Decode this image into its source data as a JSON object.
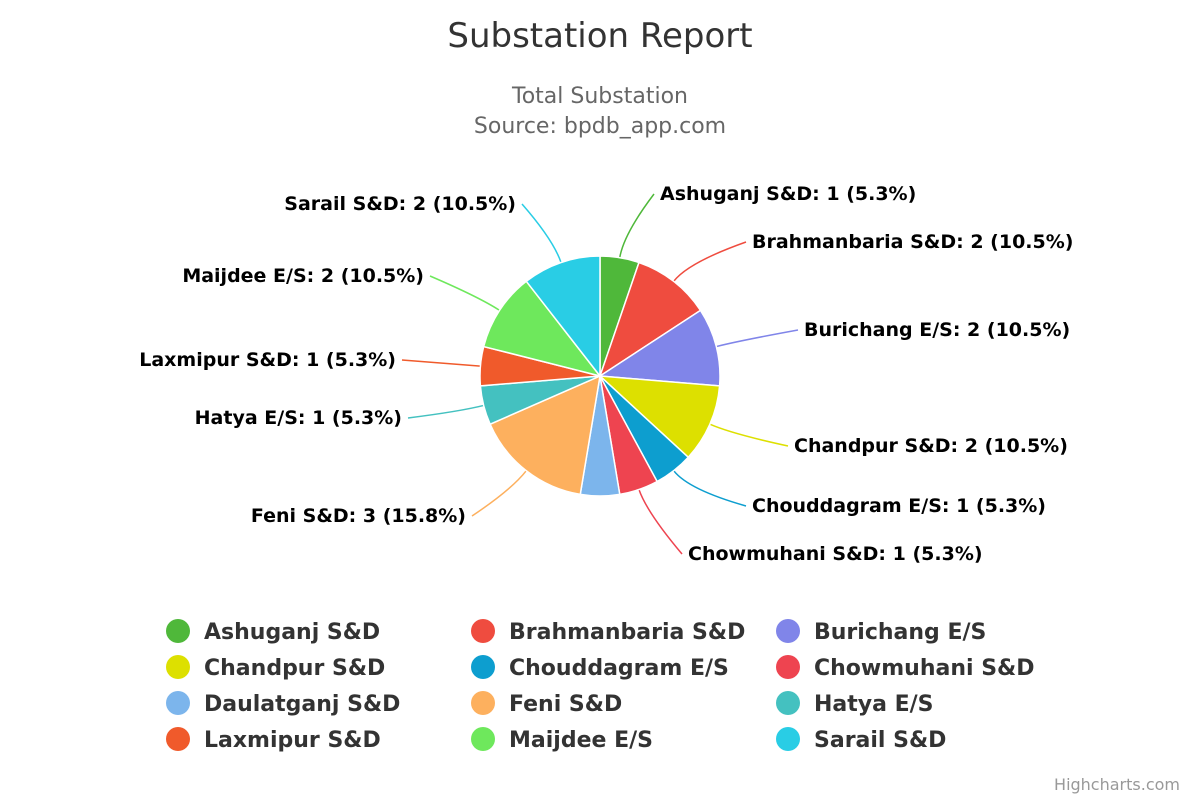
{
  "chart_data": {
    "type": "pie",
    "title": "Substation Report",
    "subtitle_lines": [
      "Total Substation",
      "Source: bpdb_app.com"
    ],
    "legend_placement": "bottom",
    "slices": [
      {
        "name": "Ashuganj S&D",
        "value": 1,
        "percent": "5.3%",
        "color": "#4fb83a"
      },
      {
        "name": "Brahmanbaria S&D",
        "value": 2,
        "percent": "10.5%",
        "color": "#ef4c3f"
      },
      {
        "name": "Burichang E/S",
        "value": 2,
        "percent": "10.5%",
        "color": "#8085e9"
      },
      {
        "name": "Chandpur S&D",
        "value": 2,
        "percent": "10.5%",
        "color": "#dde000"
      },
      {
        "name": "Chouddagram E/S",
        "value": 1,
        "percent": "5.3%",
        "color": "#0d9ecf"
      },
      {
        "name": "Chowmuhani S&D",
        "value": 1,
        "percent": "5.3%",
        "color": "#ee4450"
      },
      {
        "name": "Daulatganj S&D",
        "value": 1,
        "percent": "5.3%",
        "color": "#7cb5ec"
      },
      {
        "name": "Feni S&D",
        "value": 3,
        "percent": "15.8%",
        "color": "#fdb05e"
      },
      {
        "name": "Hatya E/S",
        "value": 1,
        "percent": "5.3%",
        "color": "#44c1c0"
      },
      {
        "name": "Laxmipur S&D",
        "value": 1,
        "percent": "5.3%",
        "color": "#f05a2b"
      },
      {
        "name": "Maijdee E/S",
        "value": 2,
        "percent": "10.5%",
        "color": "#6ee85c"
      },
      {
        "name": "Sarail S&D",
        "value": 2,
        "percent": "10.5%",
        "color": "#29cde5"
      }
    ]
  },
  "credits": "Highcharts.com"
}
